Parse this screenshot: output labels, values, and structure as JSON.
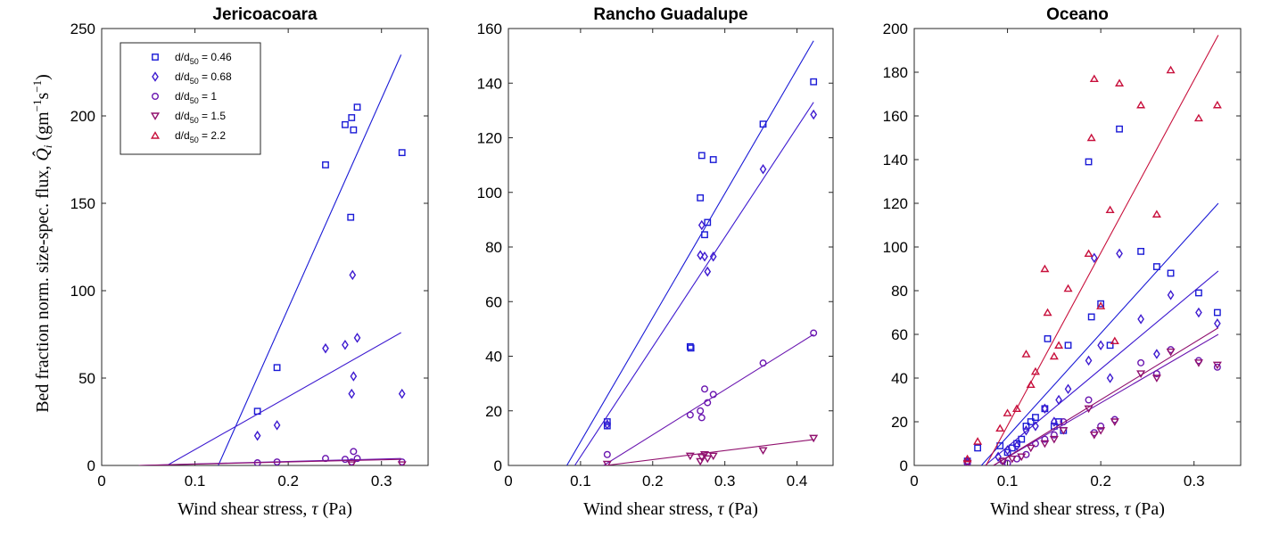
{
  "colors": {
    "d046": "#1a1ad6",
    "d068": "#3d1ad0",
    "d1": "#6a16b0",
    "d15": "#90106e",
    "d22": "#c8103c"
  },
  "legend": [
    {
      "key": "d046",
      "label": "d/d50 = 0.46",
      "pre": "d/d",
      "sub": "50",
      "post": " = 0.46",
      "marker": "square"
    },
    {
      "key": "d068",
      "label": "d/d50 = 0.68",
      "pre": "d/d",
      "sub": "50",
      "post": " = 0.68",
      "marker": "diamond"
    },
    {
      "key": "d1",
      "label": "d/d50 = 1",
      "pre": "d/d",
      "sub": "50",
      "post": " = 1",
      "marker": "circle"
    },
    {
      "key": "d15",
      "label": "d/d50 = 1.5",
      "pre": "d/d",
      "sub": "50",
      "post": " = 1.5",
      "marker": "triangle-down"
    },
    {
      "key": "d22",
      "label": "d/d50 = 2.2",
      "pre": "d/d",
      "sub": "50",
      "post": " = 2.2",
      "marker": "triangle-up"
    }
  ],
  "ylabel": "Bed fraction norm. size-spec. flux, Q̂ᵢ (gm⁻¹s⁻¹)",
  "xlabel": "Wind shear stress, τ (Pa)",
  "chart_data": [
    {
      "type": "scatter",
      "title": "Jericoacoara",
      "xlabel": "Wind shear stress, τ (Pa)",
      "ylabel": "Bed fraction norm. size-spec. flux, Q̂ᵢ (gm⁻¹s⁻¹)",
      "xlim": [
        0,
        0.35
      ],
      "ylim": [
        0,
        250
      ],
      "xticks": [
        0,
        0.1,
        0.2,
        0.3
      ],
      "xtick_labels": [
        "0",
        "0.1",
        "0.2",
        "0.3"
      ],
      "yticks": [
        0,
        50,
        100,
        150,
        200,
        250
      ],
      "ytick_labels": [
        "0",
        "50",
        "100",
        "150",
        "200",
        "250"
      ],
      "legend_position": "top-left",
      "series": [
        {
          "name": "d/d50 = 0.46",
          "key": "d046",
          "marker": "square",
          "x": [
            0.167,
            0.188,
            0.24,
            0.261,
            0.267,
            0.268,
            0.27,
            0.274,
            0.322
          ],
          "y": [
            31,
            56,
            172,
            195,
            142,
            199,
            192,
            205,
            179
          ],
          "fit": [
            [
              0.125,
              0
            ],
            [
              0.321,
              235
            ]
          ]
        },
        {
          "name": "d/d50 = 0.68",
          "key": "d068",
          "marker": "diamond",
          "x": [
            0.167,
            0.188,
            0.24,
            0.261,
            0.268,
            0.269,
            0.27,
            0.274,
            0.322
          ],
          "y": [
            17,
            23,
            67,
            69,
            41,
            109,
            51,
            73,
            41
          ],
          "fit": [
            [
              0.04,
              0
            ],
            [
              0.07,
              0
            ],
            [
              0.321,
              76
            ]
          ]
        },
        {
          "name": "d/d50 = 1",
          "key": "d1",
          "marker": "circle",
          "x": [
            0.167,
            0.188,
            0.24,
            0.261,
            0.268,
            0.27,
            0.274,
            0.322
          ],
          "y": [
            1.5,
            2,
            4,
            3.5,
            2,
            8,
            4,
            2
          ],
          "fit": [
            [
              0.04,
              0
            ],
            [
              0.321,
              4
            ]
          ]
        },
        {
          "name": "d/d50 = 1.5",
          "key": "d15",
          "marker": "triangle-down",
          "x": [
            0.268,
            0.322
          ],
          "y": [
            0.5,
            0.5
          ],
          "fit": [
            [
              0.04,
              0
            ],
            [
              0.321,
              3.5
            ]
          ]
        }
      ]
    },
    {
      "type": "scatter",
      "title": "Rancho Guadalupe",
      "xlabel": "Wind shear stress, τ (Pa)",
      "xlim": [
        0,
        0.45
      ],
      "ylim": [
        0,
        160
      ],
      "xticks": [
        0,
        0.1,
        0.2,
        0.3,
        0.4
      ],
      "xtick_labels": [
        "0",
        "0.1",
        "0.2",
        "0.3",
        "0.4"
      ],
      "yticks": [
        0,
        20,
        40,
        60,
        80,
        100,
        120,
        140,
        160
      ],
      "ytick_labels": [
        "0",
        "20",
        "40",
        "60",
        "80",
        "100",
        "120",
        "140",
        "160"
      ],
      "series": [
        {
          "name": "d/d50 = 0.46",
          "key": "d046",
          "marker": "square",
          "x": [
            0.137,
            0.137,
            0.252,
            0.253,
            0.266,
            0.268,
            0.272,
            0.276,
            0.284,
            0.353,
            0.423
          ],
          "y": [
            16,
            14.5,
            43.5,
            43,
            98,
            113.5,
            84.5,
            89,
            112,
            125,
            140.5
          ],
          "fit": [
            [
              0.081,
              0
            ],
            [
              0.423,
              155.5
            ]
          ]
        },
        {
          "name": "d/d50 = 0.68",
          "key": "d068",
          "marker": "diamond",
          "x": [
            0.137,
            0.266,
            0.268,
            0.272,
            0.276,
            0.284,
            0.353,
            0.423
          ],
          "y": [
            15,
            77,
            88,
            76.5,
            71,
            76.5,
            108.5,
            128.5
          ],
          "fit": [
            [
              0.092,
              0
            ],
            [
              0.423,
              133
            ]
          ]
        },
        {
          "name": "d/d50 = 1",
          "key": "d1",
          "marker": "circle",
          "x": [
            0.137,
            0.252,
            0.266,
            0.268,
            0.272,
            0.276,
            0.284,
            0.353,
            0.423
          ],
          "y": [
            4,
            18.5,
            20,
            17.5,
            28,
            23,
            26,
            37.5,
            48.5
          ],
          "fit": [
            [
              0.132,
              0
            ],
            [
              0.423,
              48
            ]
          ]
        },
        {
          "name": "d/d50 = 1.5",
          "key": "d15",
          "marker": "triangle-down",
          "x": [
            0.137,
            0.252,
            0.266,
            0.268,
            0.272,
            0.276,
            0.284,
            0.353,
            0.423
          ],
          "y": [
            0.5,
            3.5,
            1.5,
            3,
            4,
            2.5,
            3.5,
            5.5,
            10
          ],
          "fit": [
            [
              0.135,
              0
            ],
            [
              0.423,
              9.5
            ]
          ]
        }
      ]
    },
    {
      "type": "scatter",
      "title": "Oceano",
      "xlabel": "Wind shear stress, τ (Pa)",
      "xlim": [
        0,
        0.35
      ],
      "ylim": [
        0,
        200
      ],
      "xticks": [
        0,
        0.1,
        0.2,
        0.3
      ],
      "xtick_labels": [
        "0",
        "0.1",
        "0.2",
        "0.3"
      ],
      "yticks": [
        0,
        20,
        40,
        60,
        80,
        100,
        120,
        140,
        160,
        180,
        200
      ],
      "ytick_labels": [
        "0",
        "20",
        "40",
        "60",
        "80",
        "100",
        "120",
        "140",
        "160",
        "180",
        "200"
      ],
      "series": [
        {
          "name": "d/d50 = 0.46",
          "key": "d046",
          "marker": "square",
          "x": [
            0.057,
            0.068,
            0.092,
            0.1,
            0.105,
            0.11,
            0.115,
            0.12,
            0.125,
            0.13,
            0.14,
            0.143,
            0.15,
            0.155,
            0.16,
            0.165,
            0.187,
            0.19,
            0.2,
            0.21,
            0.22,
            0.243,
            0.26,
            0.275,
            0.305,
            0.325
          ],
          "y": [
            2,
            8,
            9,
            6,
            8,
            10,
            12,
            18,
            20,
            22,
            26,
            58,
            18,
            20,
            16,
            55,
            139,
            68,
            74,
            55,
            154,
            98,
            91,
            88,
            79,
            70
          ],
          "fit": [
            [
              0.072,
              0
            ],
            [
              0.326,
              120
            ]
          ]
        },
        {
          "name": "d/d50 = 0.68",
          "key": "d068",
          "marker": "diamond",
          "x": [
            0.057,
            0.09,
            0.1,
            0.11,
            0.12,
            0.13,
            0.14,
            0.15,
            0.155,
            0.165,
            0.187,
            0.193,
            0.2,
            0.21,
            0.22,
            0.243,
            0.26,
            0.275,
            0.305,
            0.325
          ],
          "y": [
            1.5,
            4,
            7,
            9,
            16,
            18,
            26,
            20,
            30,
            35,
            48,
            95,
            55,
            40,
            97,
            67,
            51,
            78,
            70,
            65
          ],
          "fit": [
            [
              0.076,
              0
            ],
            [
              0.326,
              89
            ]
          ]
        },
        {
          "name": "d/d50 = 1",
          "key": "d1",
          "marker": "circle",
          "x": [
            0.057,
            0.095,
            0.1,
            0.11,
            0.12,
            0.13,
            0.14,
            0.15,
            0.16,
            0.187,
            0.193,
            0.2,
            0.215,
            0.243,
            0.26,
            0.275,
            0.305,
            0.325
          ],
          "y": [
            1,
            2,
            1,
            3,
            5,
            10,
            12,
            14,
            20,
            30,
            15,
            18,
            21,
            47,
            42,
            53,
            48,
            45
          ],
          "fit": [
            [
              0.085,
              0
            ],
            [
              0.326,
              60
            ]
          ]
        },
        {
          "name": "d/d50 = 1.5",
          "key": "d15",
          "marker": "triangle-down",
          "x": [
            0.057,
            0.095,
            0.105,
            0.115,
            0.125,
            0.14,
            0.15,
            0.16,
            0.187,
            0.193,
            0.2,
            0.215,
            0.243,
            0.26,
            0.275,
            0.305,
            0.325
          ],
          "y": [
            1,
            2,
            3,
            4,
            8,
            10,
            12,
            16,
            26,
            14,
            16,
            20,
            42,
            40,
            52,
            47,
            46
          ],
          "fit": [
            [
              0.085,
              0
            ],
            [
              0.326,
              63
            ]
          ]
        },
        {
          "name": "d/d50 = 2.2",
          "key": "d22",
          "marker": "triangle-up",
          "x": [
            0.057,
            0.068,
            0.092,
            0.1,
            0.11,
            0.12,
            0.125,
            0.13,
            0.14,
            0.143,
            0.15,
            0.155,
            0.165,
            0.187,
            0.19,
            0.193,
            0.2,
            0.21,
            0.215,
            0.22,
            0.243,
            0.26,
            0.275,
            0.305,
            0.325
          ],
          "y": [
            3,
            11,
            17,
            24,
            26,
            51,
            37,
            43,
            90,
            70,
            50,
            55,
            81,
            97,
            150,
            177,
            73,
            117,
            57,
            175,
            165,
            115,
            181,
            159,
            165
          ],
          "fit": [
            [
              0.077,
              0
            ],
            [
              0.326,
              197
            ]
          ]
        }
      ]
    }
  ]
}
